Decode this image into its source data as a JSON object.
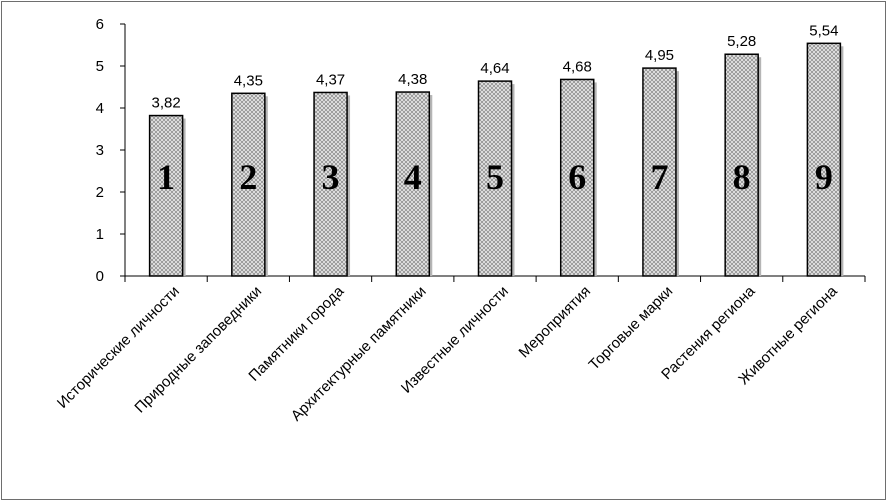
{
  "chart_data": {
    "type": "bar",
    "title": "",
    "xlabel": "",
    "ylabel": "",
    "ylim": [
      0,
      6
    ],
    "yticks": [
      "0",
      "1",
      "2",
      "3",
      "4",
      "5",
      "6"
    ],
    "grid": false,
    "legend": "none",
    "categories": [
      "Исторические личности",
      "Природные заповедники",
      "Памятники города",
      "Архитектурные памятники",
      "Известные личности",
      "Мероприятия",
      "Торговые марки",
      "Растения региона",
      "Животные региона"
    ],
    "values": [
      3.82,
      4.35,
      4.37,
      4.38,
      4.64,
      4.68,
      4.95,
      5.28,
      5.54
    ],
    "data_labels": [
      "3,82",
      "4,35",
      "4,37",
      "4,38",
      "4,64",
      "4,68",
      "4,95",
      "5,28",
      "5,54"
    ],
    "bar_numbers": [
      "1",
      "2",
      "3",
      "4",
      "5",
      "6",
      "7",
      "8",
      "9"
    ],
    "colors": {
      "bar_fill": "#e8e8e8",
      "bar_hatch": "#9a9a9a",
      "bar_stroke": "#000000",
      "axis": "#000000"
    }
  }
}
